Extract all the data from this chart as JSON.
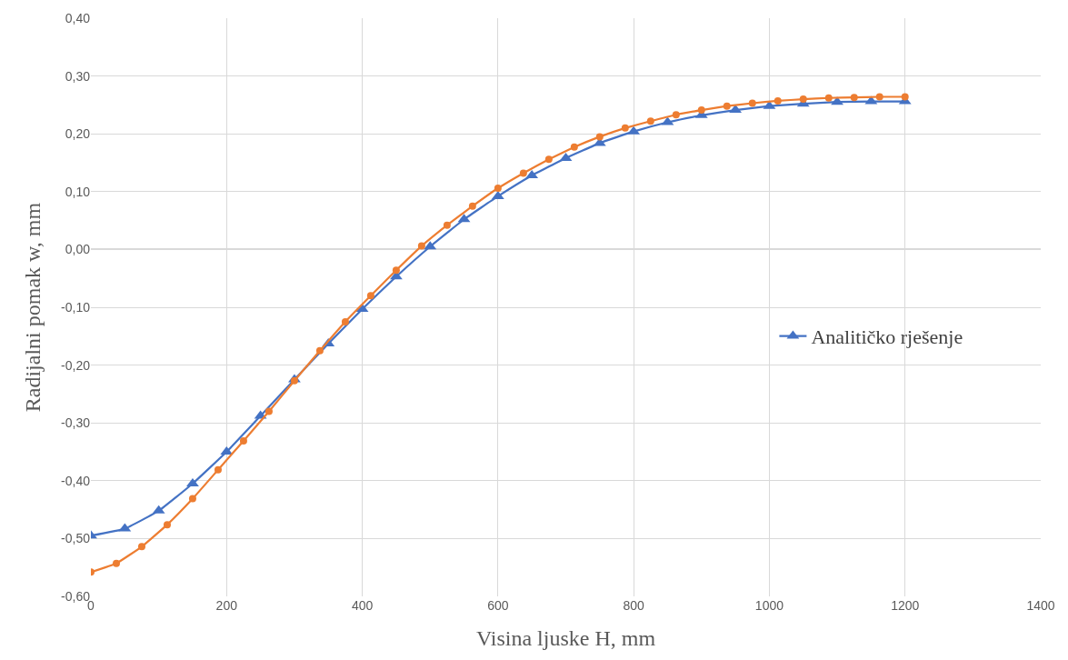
{
  "chart_data": {
    "type": "line",
    "xlabel": "Visina ljuske H, mm",
    "ylabel": "Radijalni pomak w, mm",
    "xlim": [
      0,
      1400
    ],
    "xticks": [
      0,
      200,
      400,
      600,
      800,
      1000,
      1200,
      1400
    ],
    "ylim": [
      -0.6,
      0.4
    ],
    "yticks": [
      {
        "value": -0.6,
        "label": "-0,60"
      },
      {
        "value": -0.5,
        "label": "-0,50"
      },
      {
        "value": -0.4,
        "label": "-0,40"
      },
      {
        "value": -0.3,
        "label": "-0,30"
      },
      {
        "value": -0.2,
        "label": "-0,20"
      },
      {
        "value": -0.1,
        "label": "-0,10"
      },
      {
        "value": 0,
        "label": "0,00"
      },
      {
        "value": 0.1,
        "label": "0,10"
      },
      {
        "value": 0.2,
        "label": "0,20"
      },
      {
        "value": 0.3,
        "label": "0,30"
      },
      {
        "value": 0.4,
        "label": "0,40"
      }
    ],
    "grid": true,
    "legend": "right",
    "series": [
      {
        "name": "Analitičko rješenje",
        "color": "#4472c4",
        "marker": "triangle",
        "x": [
          0,
          50,
          100,
          150,
          200,
          250,
          300,
          350,
          400,
          450,
          500,
          550,
          600,
          650,
          700,
          750,
          800,
          850,
          900,
          950,
          1000,
          1050,
          1100,
          1150,
          1200
        ],
        "values": [
          -0.495,
          -0.483,
          -0.452,
          -0.405,
          -0.35,
          -0.288,
          -0.225,
          -0.163,
          -0.103,
          -0.047,
          0.005,
          0.052,
          0.092,
          0.128,
          0.158,
          0.184,
          0.204,
          0.22,
          0.232,
          0.241,
          0.248,
          0.252,
          0.255,
          0.256,
          0.256
        ]
      },
      {
        "color": "#ed7d31",
        "marker": "circle",
        "x": [
          0,
          37.5,
          75,
          112.5,
          150,
          187.5,
          225,
          262.5,
          300,
          337.5,
          375,
          412.5,
          450,
          487.5,
          525,
          562.5,
          600,
          637.5,
          675,
          712.5,
          750,
          787.5,
          825,
          862.5,
          900,
          937.5,
          975,
          1012.5,
          1050,
          1087.5,
          1125,
          1162.5,
          1200
        ],
        "values": [
          -0.558,
          -0.543,
          -0.514,
          -0.476,
          -0.431,
          -0.381,
          -0.331,
          -0.28,
          -0.227,
          -0.175,
          -0.125,
          -0.08,
          -0.036,
          0.006,
          0.042,
          0.075,
          0.106,
          0.132,
          0.156,
          0.177,
          0.195,
          0.21,
          0.222,
          0.233,
          0.241,
          0.248,
          0.253,
          0.257,
          0.26,
          0.262,
          0.263,
          0.264,
          0.264
        ]
      }
    ]
  }
}
